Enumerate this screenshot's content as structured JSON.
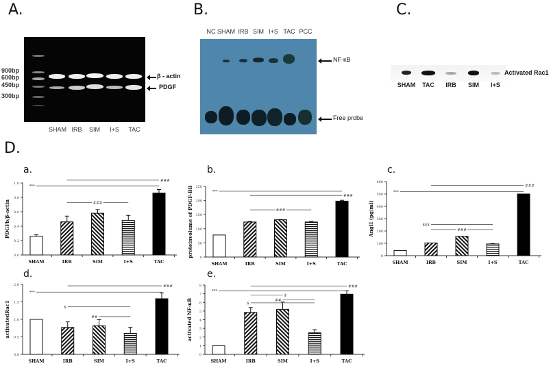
{
  "panels": {
    "A": {
      "label": "A.",
      "markers": [
        "900bp",
        "600bp",
        "450bp",
        "300bp"
      ],
      "lanes": [
        "SHAM",
        "IRB",
        "SIM",
        "I+S",
        "TAC"
      ],
      "bands": [
        "β - actin",
        "PDGF"
      ]
    },
    "B": {
      "label": "B.",
      "lanes": [
        "NC",
        "SHAM",
        "IRB",
        "SIM",
        "I+S",
        "TAC",
        "PCC"
      ],
      "bands": [
        "NF-κB",
        "Free probe"
      ]
    },
    "C": {
      "label": "C.",
      "lanes": [
        "SHAM",
        "TAC",
        "IRB",
        "SIM",
        "I+S"
      ],
      "band": "Activated Rac1"
    },
    "D": {
      "label": "D."
    }
  },
  "chart_data": [
    {
      "id": "a",
      "panel_label": "a.",
      "type": "bar",
      "categories": [
        "SHAM",
        "IRB",
        "SIM",
        "I+S",
        "TAC"
      ],
      "values": [
        0.26,
        0.46,
        0.58,
        0.48,
        0.86
      ],
      "errors": [
        0.02,
        0.08,
        0.05,
        0.07,
        0.05
      ],
      "fills": [
        "white",
        "diagonal-right",
        "diagonal-left",
        "horizontal",
        "black"
      ],
      "ylabel": "PDGFb/β-actin",
      "ylim": [
        0,
        1.0
      ],
      "yticks": [
        "0.0",
        "0.2",
        "0.4",
        "0.6",
        "0.8",
        "1.0"
      ],
      "annotations": [
        {
          "from": "IRB",
          "to": "TAC",
          "level": 1.04,
          "label": "###",
          "at": "end"
        },
        {
          "from": "SHAM",
          "to": "TAC",
          "level": 0.96,
          "label": "***",
          "at": "start"
        },
        {
          "from": "IRB",
          "to": "I+S",
          "level": 0.73,
          "label": "###",
          "at": "mid"
        }
      ]
    },
    {
      "id": "b",
      "panel_label": "b.",
      "type": "bar",
      "categories": [
        "SHAM",
        "IRB",
        "SIM",
        "I+S",
        "TAC"
      ],
      "values": [
        78,
        124,
        132,
        124,
        198
      ],
      "errors": [
        0,
        2,
        1,
        2,
        3
      ],
      "fills": [
        "white",
        "diagonal-right",
        "diagonal-left",
        "horizontal",
        "black"
      ],
      "ylabel": "proteinvolume of PDGF-BB",
      "ylim": [
        0,
        250
      ],
      "yticks": [
        "0",
        "50",
        "100",
        "150",
        "200",
        "250"
      ],
      "annotations": [
        {
          "from": "SHAM",
          "to": "TAC",
          "level": 233,
          "label": "***",
          "at": "start"
        },
        {
          "from": "IRB",
          "to": "TAC",
          "level": 218,
          "label": "###",
          "at": "end"
        },
        {
          "from": "IRB",
          "to": "I+S",
          "level": 167,
          "label": "###",
          "at": "mid"
        }
      ]
    },
    {
      "id": "c",
      "panel_label": "c.",
      "type": "bar",
      "categories": [
        "SHAM",
        "IRB",
        "SIM",
        "I+S",
        "TAC"
      ],
      "values": [
        42,
        103,
        157,
        95,
        500
      ],
      "errors": [
        0,
        0,
        0,
        3,
        0
      ],
      "fills": [
        "white",
        "diagonal-right",
        "diagonal-left",
        "horizontal",
        "black"
      ],
      "ylabel": "AngII (pg/ml)",
      "ylim": [
        0,
        600
      ],
      "yticks": [
        "0",
        "100",
        "200",
        "300",
        "400",
        "500",
        "600"
      ],
      "annotations": [
        {
          "from": "IRB",
          "to": "TAC",
          "level": 570,
          "label": "###",
          "at": "end"
        },
        {
          "from": "SHAM",
          "to": "TAC",
          "level": 520,
          "label": "***",
          "at": "start"
        },
        {
          "from": "IRB",
          "to": "I+S",
          "level": 253,
          "label": "$$$",
          "at": "start"
        },
        {
          "from": "IRB",
          "to": "I+S",
          "level": 212,
          "label": "###",
          "at": "mid"
        }
      ]
    },
    {
      "id": "d",
      "panel_label": "d.",
      "type": "bar",
      "categories": [
        "SHAM",
        "IRB",
        "SIM",
        "I+S",
        "TAC"
      ],
      "values": [
        1.0,
        0.77,
        0.82,
        0.6,
        1.59
      ],
      "errors": [
        0,
        0.16,
        0.17,
        0.17,
        0.17
      ],
      "fills": [
        "white",
        "diagonal-right",
        "diagonal-left",
        "horizontal",
        "black"
      ],
      "ylabel": "activatedRac1",
      "ylim": [
        0,
        2.0
      ],
      "yticks": [
        "0.0",
        "0.5",
        "1.0",
        "1.5",
        "2.0"
      ],
      "annotations": [
        {
          "from": "IRB",
          "to": "TAC",
          "level": 1.96,
          "label": "###",
          "at": "end"
        },
        {
          "from": "SHAM",
          "to": "TAC",
          "level": 1.78,
          "label": "***",
          "at": "start"
        },
        {
          "from": "IRB",
          "to": "I+S",
          "level": 1.36,
          "label": "$",
          "at": "start"
        },
        {
          "from": "SIM",
          "to": "I+S",
          "level": 1.08,
          "label": "##",
          "at": "start"
        }
      ]
    },
    {
      "id": "e",
      "panel_label": "e.",
      "type": "bar",
      "categories": [
        "SHAM",
        "IRB",
        "SIM",
        "I+S",
        "TAC"
      ],
      "values": [
        1.0,
        4.85,
        5.2,
        2.5,
        6.95
      ],
      "errors": [
        0,
        0.55,
        0.85,
        0.35,
        0.4
      ],
      "fills": [
        "white",
        "diagonal-right",
        "diagonal-left",
        "horizontal",
        "black"
      ],
      "ylabel": "activated NF-κB",
      "ylim": [
        0,
        8
      ],
      "yticks": [
        "0",
        "1",
        "2",
        "3",
        "4",
        "5",
        "6",
        "7",
        "8"
      ],
      "annotations": [
        {
          "from": "IRB",
          "to": "TAC",
          "level": 7.9,
          "label": "###",
          "at": "end"
        },
        {
          "from": "SHAM",
          "to": "TAC",
          "level": 7.35,
          "label": "***",
          "at": "start"
        },
        {
          "from": "IRB",
          "to": "SIM",
          "level": 6.85,
          "label": "$",
          "at": "end"
        },
        {
          "from": "SIM",
          "to": "I+S",
          "level": 6.3,
          "label": "##",
          "at": "start"
        },
        {
          "from": "IRB",
          "to": "I+S",
          "level": 5.95,
          "label": "$",
          "at": "start"
        }
      ]
    }
  ]
}
